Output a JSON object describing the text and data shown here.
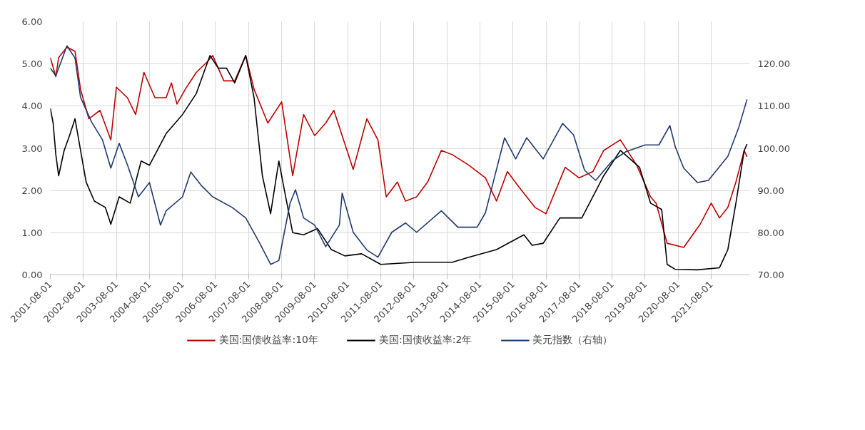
{
  "chart_data": {
    "type": "line",
    "legend": "bottom",
    "grid": true,
    "line_style": "solid",
    "marker": "none",
    "xlim": [
      "2001-08-01",
      "2022-10-01"
    ],
    "xticks": [
      "2001-08-01",
      "2002-08-01",
      "2003-08-01",
      "2004-08-01",
      "2005-08-01",
      "2006-08-01",
      "2007-08-01",
      "2008-08-01",
      "2009-08-01",
      "2010-08-01",
      "2011-08-01",
      "2012-08-01",
      "2013-08-01",
      "2014-08-01",
      "2015-08-01",
      "2016-08-01",
      "2017-08-01",
      "2018-08-01",
      "2019-08-01",
      "2020-08-01",
      "2021-08-01"
    ],
    "ylim": [
      0,
      6
    ],
    "yticks": [
      {
        "value": 0,
        "label": "0.00"
      },
      {
        "value": 1,
        "label": "1.00"
      },
      {
        "value": 2,
        "label": "2.00"
      },
      {
        "value": 3,
        "label": "3.00"
      },
      {
        "value": 4,
        "label": "4.00"
      },
      {
        "value": 5,
        "label": "5.00"
      },
      {
        "value": 6,
        "label": "6.00"
      }
    ],
    "y2lim": [
      70,
      130
    ],
    "y2ticks": [
      {
        "value": 70,
        "label": "70.00"
      },
      {
        "value": 80,
        "label": "80.00"
      },
      {
        "value": 90,
        "label": "90.00"
      },
      {
        "value": 100,
        "label": "100.00"
      },
      {
        "value": 110,
        "label": "110.00"
      },
      {
        "value": 120,
        "label": "120.00"
      }
    ],
    "series": [
      {
        "name": "美国:国债收益率:10年",
        "color": "#c00000",
        "x": [
          "2001-08",
          "2001-10",
          "2001-11",
          "2002-02",
          "2002-05",
          "2002-07",
          "2002-10",
          "2003-02",
          "2003-06",
          "2003-08",
          "2003-12",
          "2004-03",
          "2004-06",
          "2004-10",
          "2005-02",
          "2005-04",
          "2005-06",
          "2005-09",
          "2006-01",
          "2006-05",
          "2006-07",
          "2006-11",
          "2007-03",
          "2007-07",
          "2007-10",
          "2008-03",
          "2008-08",
          "2008-12",
          "2009-04",
          "2009-08",
          "2009-12",
          "2010-03",
          "2010-10",
          "2011-03",
          "2011-07",
          "2011-10",
          "2012-02",
          "2012-05",
          "2012-09",
          "2013-01",
          "2013-06",
          "2013-10",
          "2014-04",
          "2014-10",
          "2015-02",
          "2015-06",
          "2015-10",
          "2016-04",
          "2016-08",
          "2017-03",
          "2017-08",
          "2018-01",
          "2018-05",
          "2018-11",
          "2019-05",
          "2019-10",
          "2019-12",
          "2020-04",
          "2020-10",
          "2021-04",
          "2021-08",
          "2021-11",
          "2022-02",
          "2022-05",
          "2022-08",
          "2022-09"
        ],
        "values": [
          5.15,
          4.7,
          5.15,
          5.4,
          5.3,
          4.4,
          3.7,
          3.9,
          3.2,
          4.45,
          4.2,
          3.8,
          4.8,
          4.2,
          4.2,
          4.55,
          4.05,
          4.4,
          4.8,
          5.05,
          5.2,
          4.6,
          4.6,
          5.2,
          4.4,
          3.6,
          4.1,
          2.35,
          3.8,
          3.3,
          3.6,
          3.9,
          2.5,
          3.7,
          3.2,
          1.85,
          2.2,
          1.75,
          1.85,
          2.2,
          2.95,
          2.85,
          2.6,
          2.3,
          1.75,
          2.45,
          2.1,
          1.6,
          1.45,
          2.55,
          2.3,
          2.45,
          2.95,
          3.2,
          2.6,
          1.85,
          1.7,
          0.75,
          0.65,
          1.2,
          1.7,
          1.35,
          1.6,
          2.2,
          2.95,
          2.8
        ]
      },
      {
        "name": "美国:国债收益率:2年",
        "color": "#000000",
        "x": [
          "2001-08",
          "2001-09",
          "2001-10",
          "2001-11",
          "2002-01",
          "2002-03",
          "2002-05",
          "2002-09",
          "2002-12",
          "2003-04",
          "2003-06",
          "2003-09",
          "2004-01",
          "2004-05",
          "2004-08",
          "2005-02",
          "2005-08",
          "2006-01",
          "2006-06",
          "2006-09",
          "2006-12",
          "2007-03",
          "2007-07",
          "2007-10",
          "2008-01",
          "2008-04",
          "2008-07",
          "2008-09",
          "2008-12",
          "2009-04",
          "2009-09",
          "2010-02",
          "2010-07",
          "2011-01",
          "2011-08",
          "2012-09",
          "2013-10",
          "2014-04",
          "2015-02",
          "2015-12",
          "2016-03",
          "2016-07",
          "2017-01",
          "2017-09",
          "2018-05",
          "2018-11",
          "2019-06",
          "2019-10",
          "2020-02",
          "2020-04",
          "2020-07",
          "2021-03",
          "2021-11",
          "2022-02",
          "2022-05",
          "2022-08",
          "2022-09"
        ],
        "values": [
          3.95,
          3.6,
          2.85,
          2.35,
          2.95,
          3.3,
          3.7,
          2.2,
          1.75,
          1.6,
          1.2,
          1.85,
          1.7,
          2.7,
          2.6,
          3.35,
          3.8,
          4.3,
          5.2,
          4.9,
          4.9,
          4.55,
          5.2,
          4.2,
          2.35,
          1.45,
          2.7,
          2.0,
          1.0,
          0.95,
          1.1,
          0.6,
          0.45,
          0.5,
          0.25,
          0.3,
          0.3,
          0.42,
          0.6,
          0.95,
          0.7,
          0.75,
          1.35,
          1.35,
          2.35,
          2.95,
          2.55,
          1.7,
          1.55,
          0.25,
          0.13,
          0.12,
          0.17,
          0.6,
          1.7,
          2.95,
          3.1
        ]
      },
      {
        "name": "美元指数（右轴）",
        "color": "#1f3a6e",
        "axis": "y2",
        "x": [
          "2001-08",
          "2001-10",
          "2002-02",
          "2002-05",
          "2002-07",
          "2002-11",
          "2003-03",
          "2003-06",
          "2003-09",
          "2003-12",
          "2004-04",
          "2004-08",
          "2004-12",
          "2005-02",
          "2005-08",
          "2005-11",
          "2006-03",
          "2006-07",
          "2007-02",
          "2007-07",
          "2007-12",
          "2008-04",
          "2008-07",
          "2008-11",
          "2009-01",
          "2009-04",
          "2009-08",
          "2009-12",
          "2010-05",
          "2010-06",
          "2010-10",
          "2011-03",
          "2011-07",
          "2011-12",
          "2012-05",
          "2012-09",
          "2013-06",
          "2013-12",
          "2014-07",
          "2014-10",
          "2015-05",
          "2015-09",
          "2016-01",
          "2016-07",
          "2017-02",
          "2017-06",
          "2017-10",
          "2018-02",
          "2018-08",
          "2019-01",
          "2019-08",
          "2020-01",
          "2020-05",
          "2020-07",
          "2020-10",
          "2021-03",
          "2021-07",
          "2022-02",
          "2022-06",
          "2022-09"
        ],
        "values": [
          119,
          117.2,
          124.3,
          121.4,
          112.1,
          106.2,
          102,
          95.3,
          101.2,
          96.1,
          88.5,
          91.9,
          81.8,
          85.2,
          88.5,
          94.4,
          91.1,
          88.5,
          86,
          83.5,
          77.6,
          72.5,
          73.4,
          86.9,
          90.2,
          83.5,
          81.8,
          76.7,
          81.8,
          89.4,
          80.1,
          75.9,
          74.2,
          80.1,
          82.3,
          80.1,
          85.2,
          81.3,
          81.3,
          84.7,
          102.5,
          97.5,
          102.5,
          97.5,
          105.9,
          103.2,
          94.8,
          92.4,
          97,
          99.2,
          100.8,
          100.8,
          105.4,
          100.3,
          95.3,
          91.9,
          92.4,
          98.1,
          104.9,
          111.6
        ]
      }
    ]
  }
}
